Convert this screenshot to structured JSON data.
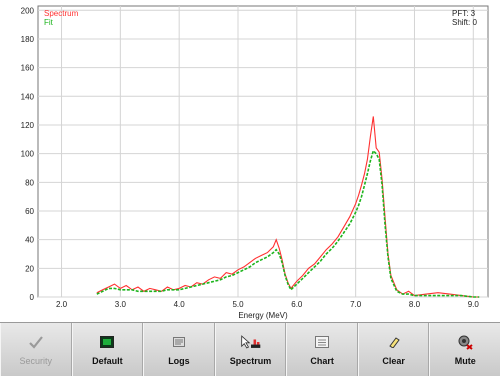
{
  "chart_data": {
    "type": "line",
    "xlabel": "Energy (MeV)",
    "ylabel": "",
    "xlim": [
      1.6,
      9.25
    ],
    "ylim": [
      0,
      203
    ],
    "x_ticks": [
      "2.0",
      "3.0",
      "4.0",
      "5.0",
      "6.0",
      "7.0",
      "8.0",
      "9.0"
    ],
    "y_ticks": [
      "0",
      "20",
      "40",
      "60",
      "80",
      "100",
      "120",
      "140",
      "160",
      "180",
      "200"
    ],
    "grid": true,
    "legend_position": "top-left",
    "series": [
      {
        "name": "Spectrum",
        "color": "#ff3030",
        "x": [
          2.6,
          2.7,
          2.8,
          2.9,
          3.0,
          3.1,
          3.2,
          3.3,
          3.4,
          3.5,
          3.6,
          3.7,
          3.8,
          3.9,
          4.0,
          4.1,
          4.2,
          4.3,
          4.4,
          4.5,
          4.6,
          4.7,
          4.8,
          4.9,
          5.0,
          5.1,
          5.2,
          5.3,
          5.4,
          5.5,
          5.6,
          5.65,
          5.7,
          5.75,
          5.8,
          5.85,
          5.9,
          6.0,
          6.1,
          6.2,
          6.3,
          6.4,
          6.5,
          6.6,
          6.7,
          6.8,
          6.9,
          7.0,
          7.05,
          7.1,
          7.15,
          7.2,
          7.25,
          7.3,
          7.35,
          7.4,
          7.45,
          7.5,
          7.55,
          7.6,
          7.7,
          7.8,
          7.9,
          8.0,
          8.2,
          8.4,
          8.6,
          8.8,
          9.0,
          9.1
        ],
        "y": [
          3,
          5,
          7,
          9,
          6,
          8,
          5,
          7,
          4,
          6,
          5,
          4,
          7,
          5,
          6,
          8,
          7,
          10,
          9,
          12,
          14,
          13,
          17,
          16,
          19,
          21,
          24,
          27,
          29,
          31,
          35,
          40,
          34,
          26,
          16,
          10,
          6,
          11,
          15,
          20,
          23,
          28,
          33,
          37,
          42,
          49,
          56,
          65,
          71,
          78,
          86,
          96,
          112,
          126,
          104,
          101,
          82,
          55,
          30,
          15,
          5,
          2,
          4,
          1,
          2,
          3,
          2,
          1,
          0,
          0
        ]
      },
      {
        "name": "Fit",
        "color": "#1db41d",
        "x": [
          2.6,
          2.7,
          2.8,
          2.9,
          3.0,
          3.1,
          3.2,
          3.3,
          3.4,
          3.5,
          3.6,
          3.7,
          3.8,
          3.9,
          4.0,
          4.1,
          4.2,
          4.3,
          4.4,
          4.5,
          4.6,
          4.7,
          4.8,
          4.9,
          5.0,
          5.1,
          5.2,
          5.3,
          5.4,
          5.5,
          5.6,
          5.65,
          5.7,
          5.75,
          5.8,
          5.85,
          5.9,
          6.0,
          6.1,
          6.2,
          6.3,
          6.4,
          6.5,
          6.6,
          6.7,
          6.8,
          6.9,
          7.0,
          7.05,
          7.1,
          7.15,
          7.2,
          7.25,
          7.3,
          7.35,
          7.4,
          7.45,
          7.5,
          7.55,
          7.6,
          7.7,
          7.8,
          7.9,
          8.0,
          8.2,
          8.4,
          8.6,
          8.8,
          9.0,
          9.1
        ],
        "y": [
          2,
          4,
          6,
          6,
          5,
          5,
          5,
          4,
          4,
          4,
          4,
          4,
          5,
          5,
          5,
          6,
          7,
          8,
          9,
          10,
          11,
          12,
          14,
          15,
          17,
          19,
          21,
          24,
          26,
          28,
          31,
          33,
          30,
          24,
          15,
          9,
          5,
          9,
          13,
          17,
          21,
          25,
          30,
          34,
          39,
          45,
          51,
          59,
          64,
          70,
          78,
          86,
          95,
          102,
          100,
          96,
          78,
          50,
          28,
          13,
          4,
          2,
          2,
          1,
          1,
          1,
          1,
          1,
          0,
          0
        ]
      }
    ]
  },
  "info": {
    "pft": "PFT: 3",
    "shift": "Shift: 0"
  },
  "toolbar": {
    "buttons": [
      {
        "label": "Security",
        "icon": "check-icon"
      },
      {
        "label": "Default",
        "icon": "default-screen-icon"
      },
      {
        "label": "Logs",
        "icon": "logs-icon"
      },
      {
        "label": "Spectrum",
        "icon": "spectrum-icon"
      },
      {
        "label": "Chart",
        "icon": "chart-icon"
      },
      {
        "label": "Clear",
        "icon": "eraser-icon"
      },
      {
        "label": "Mute",
        "icon": "speaker-mute-icon"
      }
    ]
  }
}
